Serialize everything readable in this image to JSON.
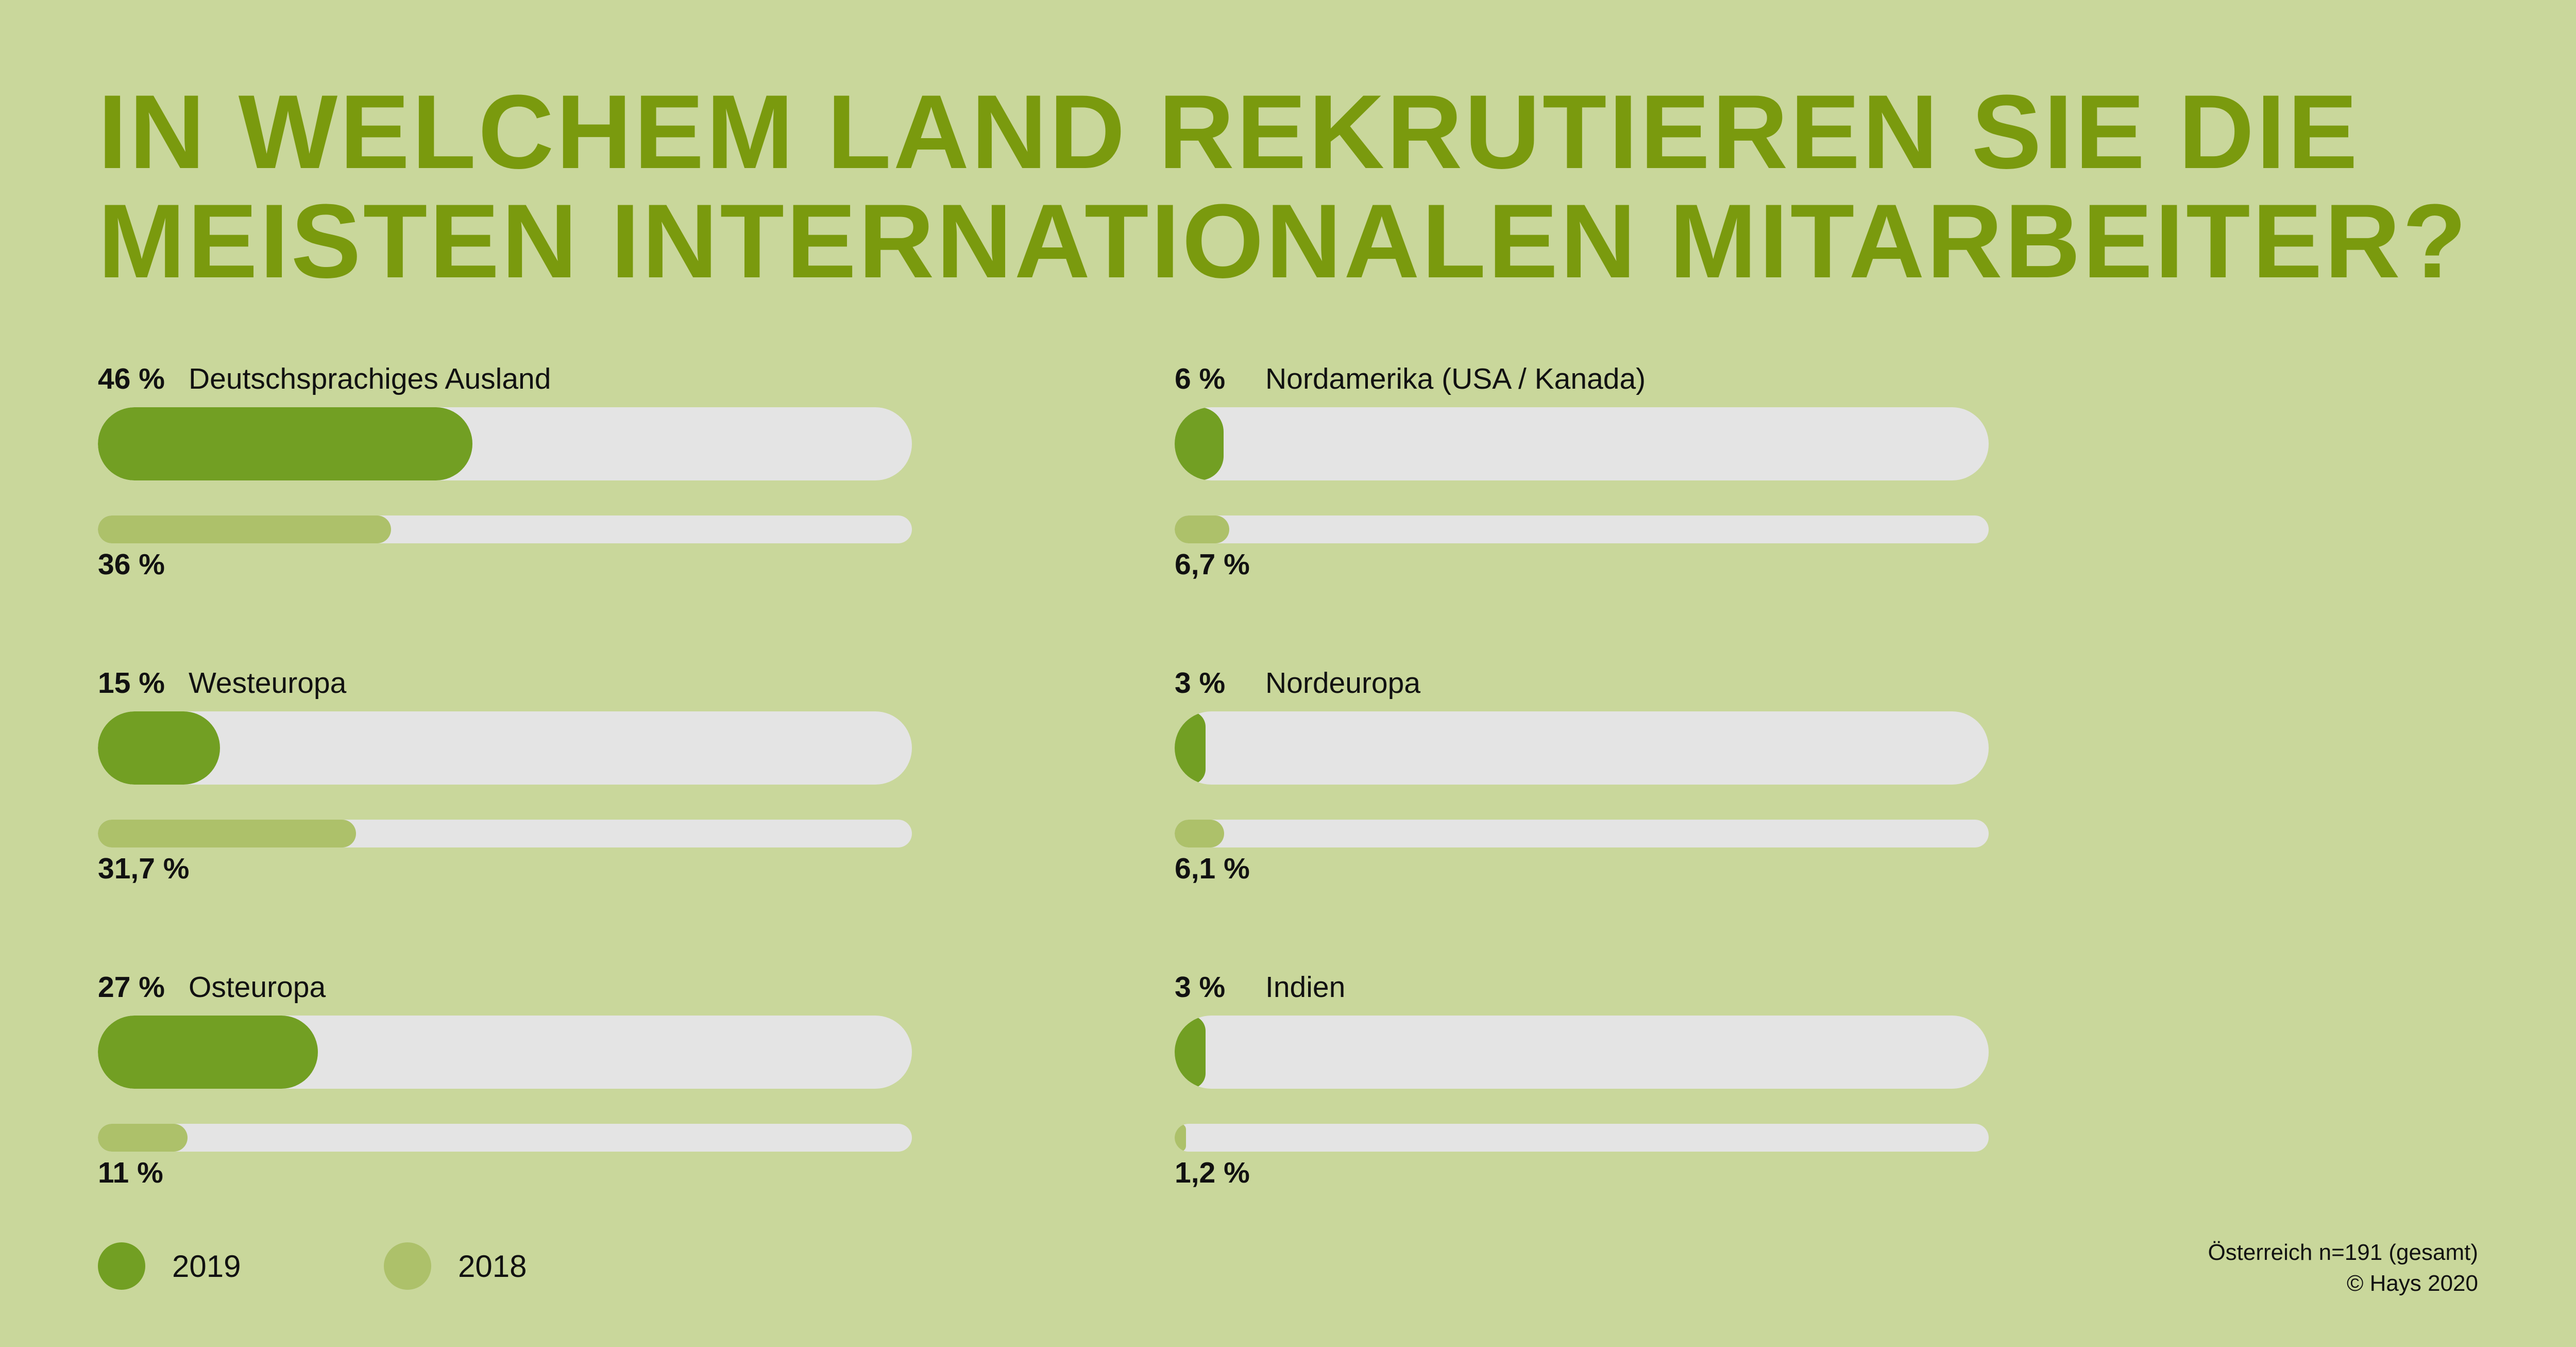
{
  "title_lines": [
    "IN WELCHEM LAND REKRUTIEREN SIE DIE",
    "MEISTEN INTERNATIONALEN MITARBEITER?"
  ],
  "colors": {
    "background": "#c9d79b",
    "title": "#7a9a0e",
    "series_2019": "#729f23",
    "series_2018": "#adc16a",
    "track": "#e4e4e4"
  },
  "chart_data": {
    "type": "bar",
    "title": "IN WELCHEM LAND REKRUTIEREN SIE DIE MEISTEN INTERNATIONALEN MITARBEITER?",
    "ylim": [
      0,
      100
    ],
    "categories": [
      "Deutschsprachiges Ausland",
      "Westeuropa",
      "Osteuropa",
      "Nordamerika (USA / Kanada)",
      "Nordeuropa",
      "Indien"
    ],
    "series": [
      {
        "name": "2019",
        "values": [
          46,
          15,
          27,
          6,
          3,
          3
        ],
        "labels": [
          "46 %",
          "15 %",
          "27 %",
          "6 %",
          "3 %",
          "3 %"
        ]
      },
      {
        "name": "2018",
        "values": [
          36,
          31.7,
          11,
          6.7,
          6.1,
          1.2
        ],
        "labels": [
          "36 %",
          "31,7 %",
          "11 %",
          "6,7 %",
          "6,1 %",
          "1,2 %"
        ]
      }
    ]
  },
  "legend": [
    {
      "label": "2019"
    },
    {
      "label": "2018"
    }
  ],
  "footnote": {
    "line1": "Österreich n=191 (gesamt)",
    "line2": "© Hays 2020"
  }
}
